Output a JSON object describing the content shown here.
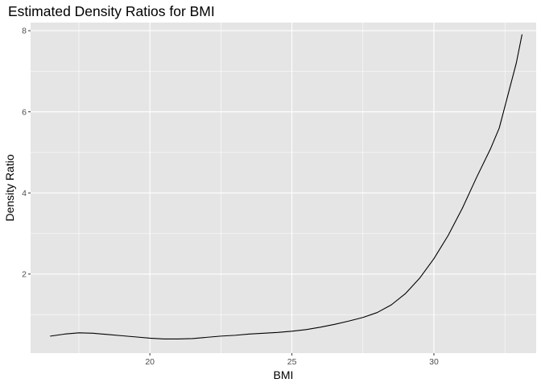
{
  "chart_data": {
    "type": "line",
    "title": "Estimated Density Ratios for BMI",
    "xlabel": "BMI",
    "ylabel": "Density Ratio",
    "xlim": [
      15.8,
      33.6
    ],
    "ylim": [
      0.05,
      8.2
    ],
    "x_ticks": [
      20,
      25,
      30
    ],
    "y_ticks": [
      2,
      4,
      6,
      8
    ],
    "x_minor_ticks": [
      17.5,
      22.5,
      27.5,
      32.5
    ],
    "y_minor_ticks": [
      1,
      3,
      5,
      7
    ],
    "grid": true,
    "background": "#e5e5e5",
    "grid_color": "#ffffff",
    "line_color": "#000000",
    "series": [
      {
        "x": [
          16.5,
          17.0,
          17.5,
          18.0,
          18.5,
          19.0,
          19.5,
          20.0,
          20.5,
          21.0,
          21.5,
          22.0,
          22.5,
          23.0,
          23.5,
          24.0,
          24.5,
          25.0,
          25.5,
          26.0,
          26.5,
          27.0,
          27.5,
          28.0,
          28.5,
          29.0,
          29.5,
          30.0,
          30.5,
          31.0,
          31.5,
          32.0,
          32.3,
          32.6,
          32.9,
          33.1
        ],
        "y": [
          0.47,
          0.52,
          0.55,
          0.54,
          0.51,
          0.48,
          0.45,
          0.42,
          0.4,
          0.4,
          0.41,
          0.44,
          0.47,
          0.49,
          0.52,
          0.54,
          0.56,
          0.59,
          0.63,
          0.69,
          0.76,
          0.84,
          0.93,
          1.05,
          1.24,
          1.52,
          1.9,
          2.38,
          2.95,
          3.62,
          4.38,
          5.1,
          5.6,
          6.4,
          7.2,
          7.9
        ]
      }
    ]
  }
}
